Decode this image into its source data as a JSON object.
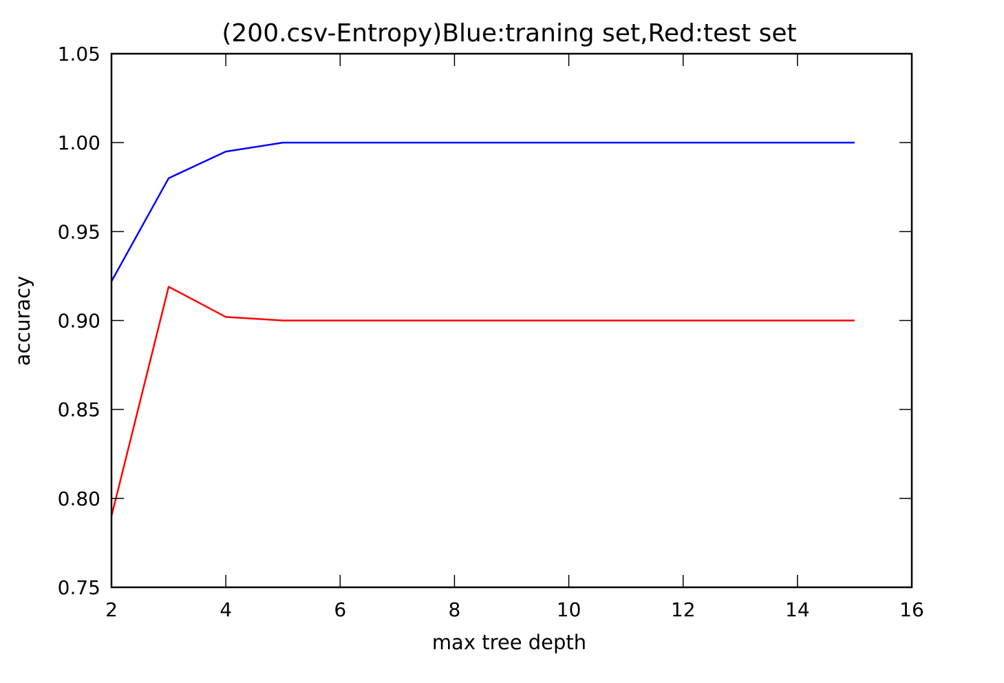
{
  "chart_data": {
    "type": "line",
    "title": "(200.csv-Entropy)Blue:traning set,Red:test set",
    "xlabel": "max tree depth",
    "ylabel": "accuracy",
    "xlim": [
      2,
      16
    ],
    "ylim": [
      0.75,
      1.05
    ],
    "xticks": [
      2,
      4,
      6,
      8,
      10,
      12,
      14,
      16
    ],
    "xtick_labels": [
      "2",
      "4",
      "6",
      "8",
      "10",
      "12",
      "14",
      "16"
    ],
    "yticks": [
      0.75,
      0.8,
      0.85,
      0.9,
      0.95,
      1.0,
      1.05
    ],
    "ytick_labels": [
      "0.75",
      "0.80",
      "0.85",
      "0.90",
      "0.95",
      "1.00",
      "1.05"
    ],
    "grid": false,
    "legend": "none",
    "x": [
      2,
      3,
      4,
      5,
      6,
      7,
      8,
      9,
      10,
      11,
      12,
      13,
      14,
      15
    ],
    "series": [
      {
        "color": "#0000ff",
        "values": [
          0.922,
          0.98,
          0.995,
          1.0,
          1.0,
          1.0,
          1.0,
          1.0,
          1.0,
          1.0,
          1.0,
          1.0,
          1.0,
          1.0
        ]
      },
      {
        "color": "#ff0000",
        "values": [
          0.79,
          0.919,
          0.902,
          0.9,
          0.9,
          0.9,
          0.9,
          0.9,
          0.9,
          0.9,
          0.9,
          0.9,
          0.9,
          0.9
        ]
      }
    ]
  }
}
